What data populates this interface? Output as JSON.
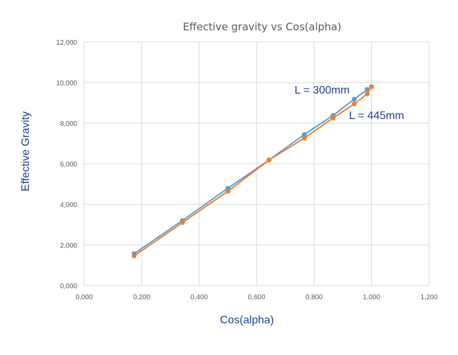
{
  "chart_data": {
    "type": "line",
    "title": "Effective gravity vs Cos(alpha)",
    "xlabel": "Cos(alpha)",
    "ylabel": "Effective Gravity",
    "xlim": [
      0,
      1.2
    ],
    "ylim": [
      0,
      12
    ],
    "x_ticks": [
      "0,000",
      "0,200",
      "0,400",
      "0,600",
      "0,800",
      "1,000",
      "1,200"
    ],
    "y_ticks": [
      "0,000",
      "2,000",
      "4,000",
      "6,000",
      "8,000",
      "10,000",
      "12,000"
    ],
    "grid": true,
    "annotations": [
      "L = 300mm",
      "L = 445mm"
    ],
    "series": [
      {
        "color": "#5b9bd5",
        "points": [
          {
            "x": 0.174,
            "y": 1.57
          },
          {
            "x": 0.342,
            "y": 3.2
          },
          {
            "x": 0.5,
            "y": 4.79
          },
          {
            "x": 0.643,
            "y": 6.18
          },
          {
            "x": 0.766,
            "y": 7.44
          },
          {
            "x": 0.866,
            "y": 8.38
          },
          {
            "x": 0.94,
            "y": 9.18
          },
          {
            "x": 0.985,
            "y": 9.66
          }
        ]
      },
      {
        "color": "#ed7d31",
        "points": [
          {
            "x": 0.174,
            "y": 1.46
          },
          {
            "x": 0.342,
            "y": 3.1
          },
          {
            "x": 0.5,
            "y": 4.64
          },
          {
            "x": 0.643,
            "y": 6.18
          },
          {
            "x": 0.766,
            "y": 7.26
          },
          {
            "x": 0.866,
            "y": 8.25
          },
          {
            "x": 0.94,
            "y": 8.95
          },
          {
            "x": 0.985,
            "y": 9.44
          },
          {
            "x": 1.0,
            "y": 9.8
          }
        ]
      }
    ]
  }
}
